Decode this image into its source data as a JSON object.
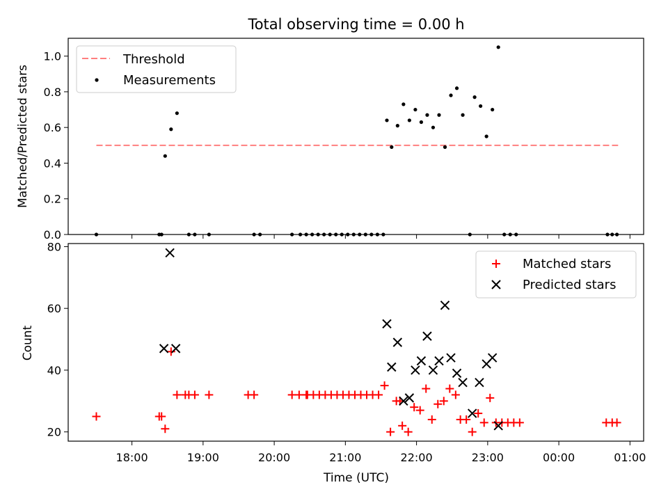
{
  "title": "Total observing time = 0.00 h",
  "chart_data": [
    {
      "type": "scatter",
      "ylabel": "Matched/Predicted stars",
      "ylim": [
        0,
        1.1
      ],
      "yticks": [
        0.0,
        0.2,
        0.4,
        0.6,
        0.8,
        1.0
      ],
      "ytick_labels": [
        "0.0",
        "0.2",
        "0.4",
        "0.6",
        "0.8",
        "1.0"
      ],
      "legend_position": "top-left",
      "threshold": {
        "name": "Threshold",
        "y": 0.5,
        "x_start": "17:30",
        "x_end": "00:50",
        "color": "#ff7f7f"
      },
      "series": [
        {
          "name": "Measurements",
          "color": "#000000",
          "marker": "dot",
          "points": [
            [
              "17:30",
              0
            ],
            [
              "18:23",
              0
            ],
            [
              "18:25",
              0
            ],
            [
              "18:28",
              0.44
            ],
            [
              "18:33",
              0.59
            ],
            [
              "18:38",
              0.68
            ],
            [
              "18:48",
              0
            ],
            [
              "18:53",
              0
            ],
            [
              "19:05",
              0
            ],
            [
              "19:43",
              0
            ],
            [
              "19:48",
              0
            ],
            [
              "20:15",
              0
            ],
            [
              "20:22",
              0
            ],
            [
              "20:27",
              0
            ],
            [
              "20:32",
              0
            ],
            [
              "20:37",
              0
            ],
            [
              "20:42",
              0
            ],
            [
              "20:47",
              0
            ],
            [
              "20:52",
              0
            ],
            [
              "20:57",
              0
            ],
            [
              "21:02",
              0
            ],
            [
              "21:07",
              0
            ],
            [
              "21:12",
              0
            ],
            [
              "21:17",
              0
            ],
            [
              "21:22",
              0
            ],
            [
              "21:27",
              0
            ],
            [
              "21:32",
              0
            ],
            [
              "21:35",
              0.64
            ],
            [
              "21:39",
              0.49
            ],
            [
              "21:44",
              0.61
            ],
            [
              "21:49",
              0.73
            ],
            [
              "21:54",
              0.64
            ],
            [
              "21:59",
              0.7
            ],
            [
              "22:04",
              0.63
            ],
            [
              "22:09",
              0.67
            ],
            [
              "22:14",
              0.6
            ],
            [
              "22:19",
              0.67
            ],
            [
              "22:24",
              0.49
            ],
            [
              "22:29",
              0.78
            ],
            [
              "22:34",
              0.82
            ],
            [
              "22:39",
              0.67
            ],
            [
              "22:45",
              0
            ],
            [
              "22:49",
              0.77
            ],
            [
              "22:54",
              0.72
            ],
            [
              "22:59",
              0.55
            ],
            [
              "23:04",
              0.7
            ],
            [
              "23:09",
              1.05
            ],
            [
              "23:14",
              0
            ],
            [
              "23:19",
              0
            ],
            [
              "23:24",
              0
            ],
            [
              "00:41",
              0
            ],
            [
              "00:45",
              0
            ],
            [
              "00:49",
              0
            ]
          ]
        }
      ]
    },
    {
      "type": "scatter",
      "xlabel": "Time (UTC)",
      "ylabel": "Count",
      "ylim": [
        17,
        81
      ],
      "yticks": [
        20,
        40,
        60,
        80
      ],
      "ytick_labels": [
        "20",
        "40",
        "60",
        "80"
      ],
      "xticks": [
        "18:00",
        "19:00",
        "20:00",
        "21:00",
        "22:00",
        "23:00",
        "00:00",
        "01:00"
      ],
      "legend_position": "top-right",
      "series": [
        {
          "name": "Matched stars",
          "color": "#ff0000",
          "marker": "plus",
          "points": [
            [
              "17:30",
              25
            ],
            [
              "18:23",
              25
            ],
            [
              "18:25",
              25
            ],
            [
              "18:28",
              21
            ],
            [
              "18:33",
              46
            ],
            [
              "18:38",
              32
            ],
            [
              "18:45",
              32
            ],
            [
              "18:48",
              32
            ],
            [
              "18:53",
              32
            ],
            [
              "19:05",
              32
            ],
            [
              "19:38",
              32
            ],
            [
              "19:43",
              32
            ],
            [
              "20:15",
              32
            ],
            [
              "20:21",
              32
            ],
            [
              "20:27",
              32
            ],
            [
              "20:28",
              32
            ],
            [
              "20:33",
              32
            ],
            [
              "20:38",
              32
            ],
            [
              "20:43",
              32
            ],
            [
              "20:48",
              32
            ],
            [
              "20:53",
              32
            ],
            [
              "20:58",
              32
            ],
            [
              "21:03",
              32
            ],
            [
              "21:08",
              32
            ],
            [
              "21:13",
              32
            ],
            [
              "21:18",
              32
            ],
            [
              "21:23",
              32
            ],
            [
              "21:28",
              32
            ],
            [
              "21:33",
              35
            ],
            [
              "21:38",
              20
            ],
            [
              "21:43",
              30
            ],
            [
              "21:46",
              30
            ],
            [
              "21:48",
              22
            ],
            [
              "21:53",
              20
            ],
            [
              "21:58",
              28
            ],
            [
              "22:03",
              27
            ],
            [
              "22:08",
              34
            ],
            [
              "22:13",
              24
            ],
            [
              "22:18",
              29
            ],
            [
              "22:23",
              30
            ],
            [
              "22:28",
              34
            ],
            [
              "22:33",
              32
            ],
            [
              "22:37",
              24
            ],
            [
              "22:42",
              24
            ],
            [
              "22:47",
              20
            ],
            [
              "22:52",
              26
            ],
            [
              "22:57",
              23
            ],
            [
              "23:02",
              31
            ],
            [
              "23:07",
              23
            ],
            [
              "23:12",
              23
            ],
            [
              "23:17",
              23
            ],
            [
              "23:22",
              23
            ],
            [
              "23:27",
              23
            ],
            [
              "00:40",
              23
            ],
            [
              "00:45",
              23
            ],
            [
              "00:49",
              23
            ]
          ]
        },
        {
          "name": "Predicted stars",
          "color": "#000000",
          "marker": "x",
          "points": [
            [
              "18:27",
              47
            ],
            [
              "18:32",
              78
            ],
            [
              "18:37",
              47
            ],
            [
              "21:35",
              55
            ],
            [
              "21:39",
              41
            ],
            [
              "21:44",
              49
            ],
            [
              "21:49",
              30
            ],
            [
              "21:54",
              31
            ],
            [
              "21:59",
              40
            ],
            [
              "22:04",
              43
            ],
            [
              "22:09",
              51
            ],
            [
              "22:14",
              40
            ],
            [
              "22:19",
              43
            ],
            [
              "22:24",
              61
            ],
            [
              "22:29",
              44
            ],
            [
              "22:34",
              39
            ],
            [
              "22:39",
              36
            ],
            [
              "22:47",
              26
            ],
            [
              "22:53",
              36
            ],
            [
              "22:59",
              42
            ],
            [
              "23:04",
              44
            ],
            [
              "23:09",
              22
            ]
          ]
        }
      ]
    }
  ]
}
